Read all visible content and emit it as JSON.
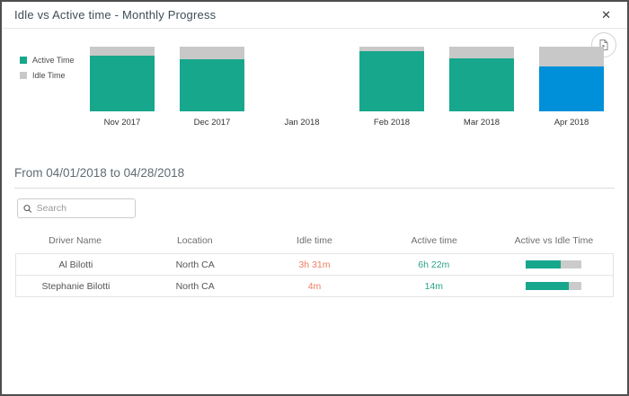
{
  "modal": {
    "title": "Idle vs Active time - Monthly Progress",
    "close_glyph": "✕"
  },
  "toolbar": {
    "export_button": "export-chart"
  },
  "chart_data": {
    "type": "bar",
    "stacked": true,
    "categories": [
      "Nov 2017",
      "Dec 2017",
      "Jan 2018",
      "Feb 2018",
      "Mar 2018",
      "Apr 2018"
    ],
    "series": [
      {
        "name": "Active Time",
        "values": [
          86,
          81,
          null,
          93,
          82,
          69
        ],
        "color": "#17a78c"
      },
      {
        "name": "Idle Time",
        "values": [
          14,
          19,
          null,
          7,
          18,
          31
        ],
        "color": "#c8c8c8"
      }
    ],
    "unit": "percent of column height (estimated, no axis shown)",
    "highlighted_category": "Apr 2018",
    "highlight_color": "#0090d9",
    "legend_position": "left",
    "axes": "none",
    "title": "",
    "xlabel": "",
    "ylabel": ""
  },
  "legend": [
    {
      "label": "Active Time",
      "color": "#17a78c"
    },
    {
      "label": "Idle Time",
      "color": "#c8c8c8"
    }
  ],
  "period": {
    "label": "From 04/01/2018 to 04/28/2018"
  },
  "search": {
    "placeholder": "Search"
  },
  "table": {
    "columns": [
      "Driver Name",
      "Location",
      "Idle time",
      "Active time",
      "Active vs Idle Time"
    ],
    "rows": [
      {
        "driver": "Al Bilotti",
        "location": "North CA",
        "idle": "3h 31m",
        "active": "6h 22m",
        "active_pct": 64
      },
      {
        "driver": "Stephanie Bilotti",
        "location": "North CA",
        "idle": "4m",
        "active": "14m",
        "active_pct": 78
      }
    ]
  },
  "colors": {
    "active_teal": "#17a78c",
    "idle_gray": "#c8c8c8",
    "selected_blue": "#0090d9",
    "idle_text_orange": "#ed7d5f",
    "active_text_teal": "#29a28a"
  }
}
